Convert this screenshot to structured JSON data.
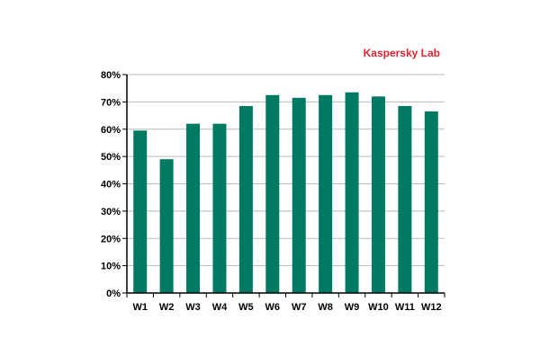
{
  "chart_data": {
    "type": "bar",
    "brand": "Kaspersky Lab",
    "title": "",
    "xlabel": "",
    "ylabel": "",
    "categories": [
      "W1",
      "W2",
      "W3",
      "W4",
      "W5",
      "W6",
      "W7",
      "W8",
      "W9",
      "W10",
      "W11",
      "W12"
    ],
    "values": [
      59.5,
      49,
      62,
      62,
      68.5,
      72.5,
      71.5,
      72.5,
      73.5,
      72,
      68.5,
      66.5
    ],
    "ylim": [
      0,
      80
    ],
    "yticks": [
      0,
      10,
      20,
      30,
      40,
      50,
      60,
      70,
      80
    ],
    "ytick_labels": [
      "0%",
      "10%",
      "20%",
      "30%",
      "40%",
      "50%",
      "60%",
      "70%",
      "80%"
    ],
    "grid": true,
    "legend": "none"
  },
  "colors": {
    "bar": "#007A63",
    "brand": "#E0242E",
    "grid": "#B8B8B8",
    "axis": "#000000",
    "text": "#000000"
  }
}
